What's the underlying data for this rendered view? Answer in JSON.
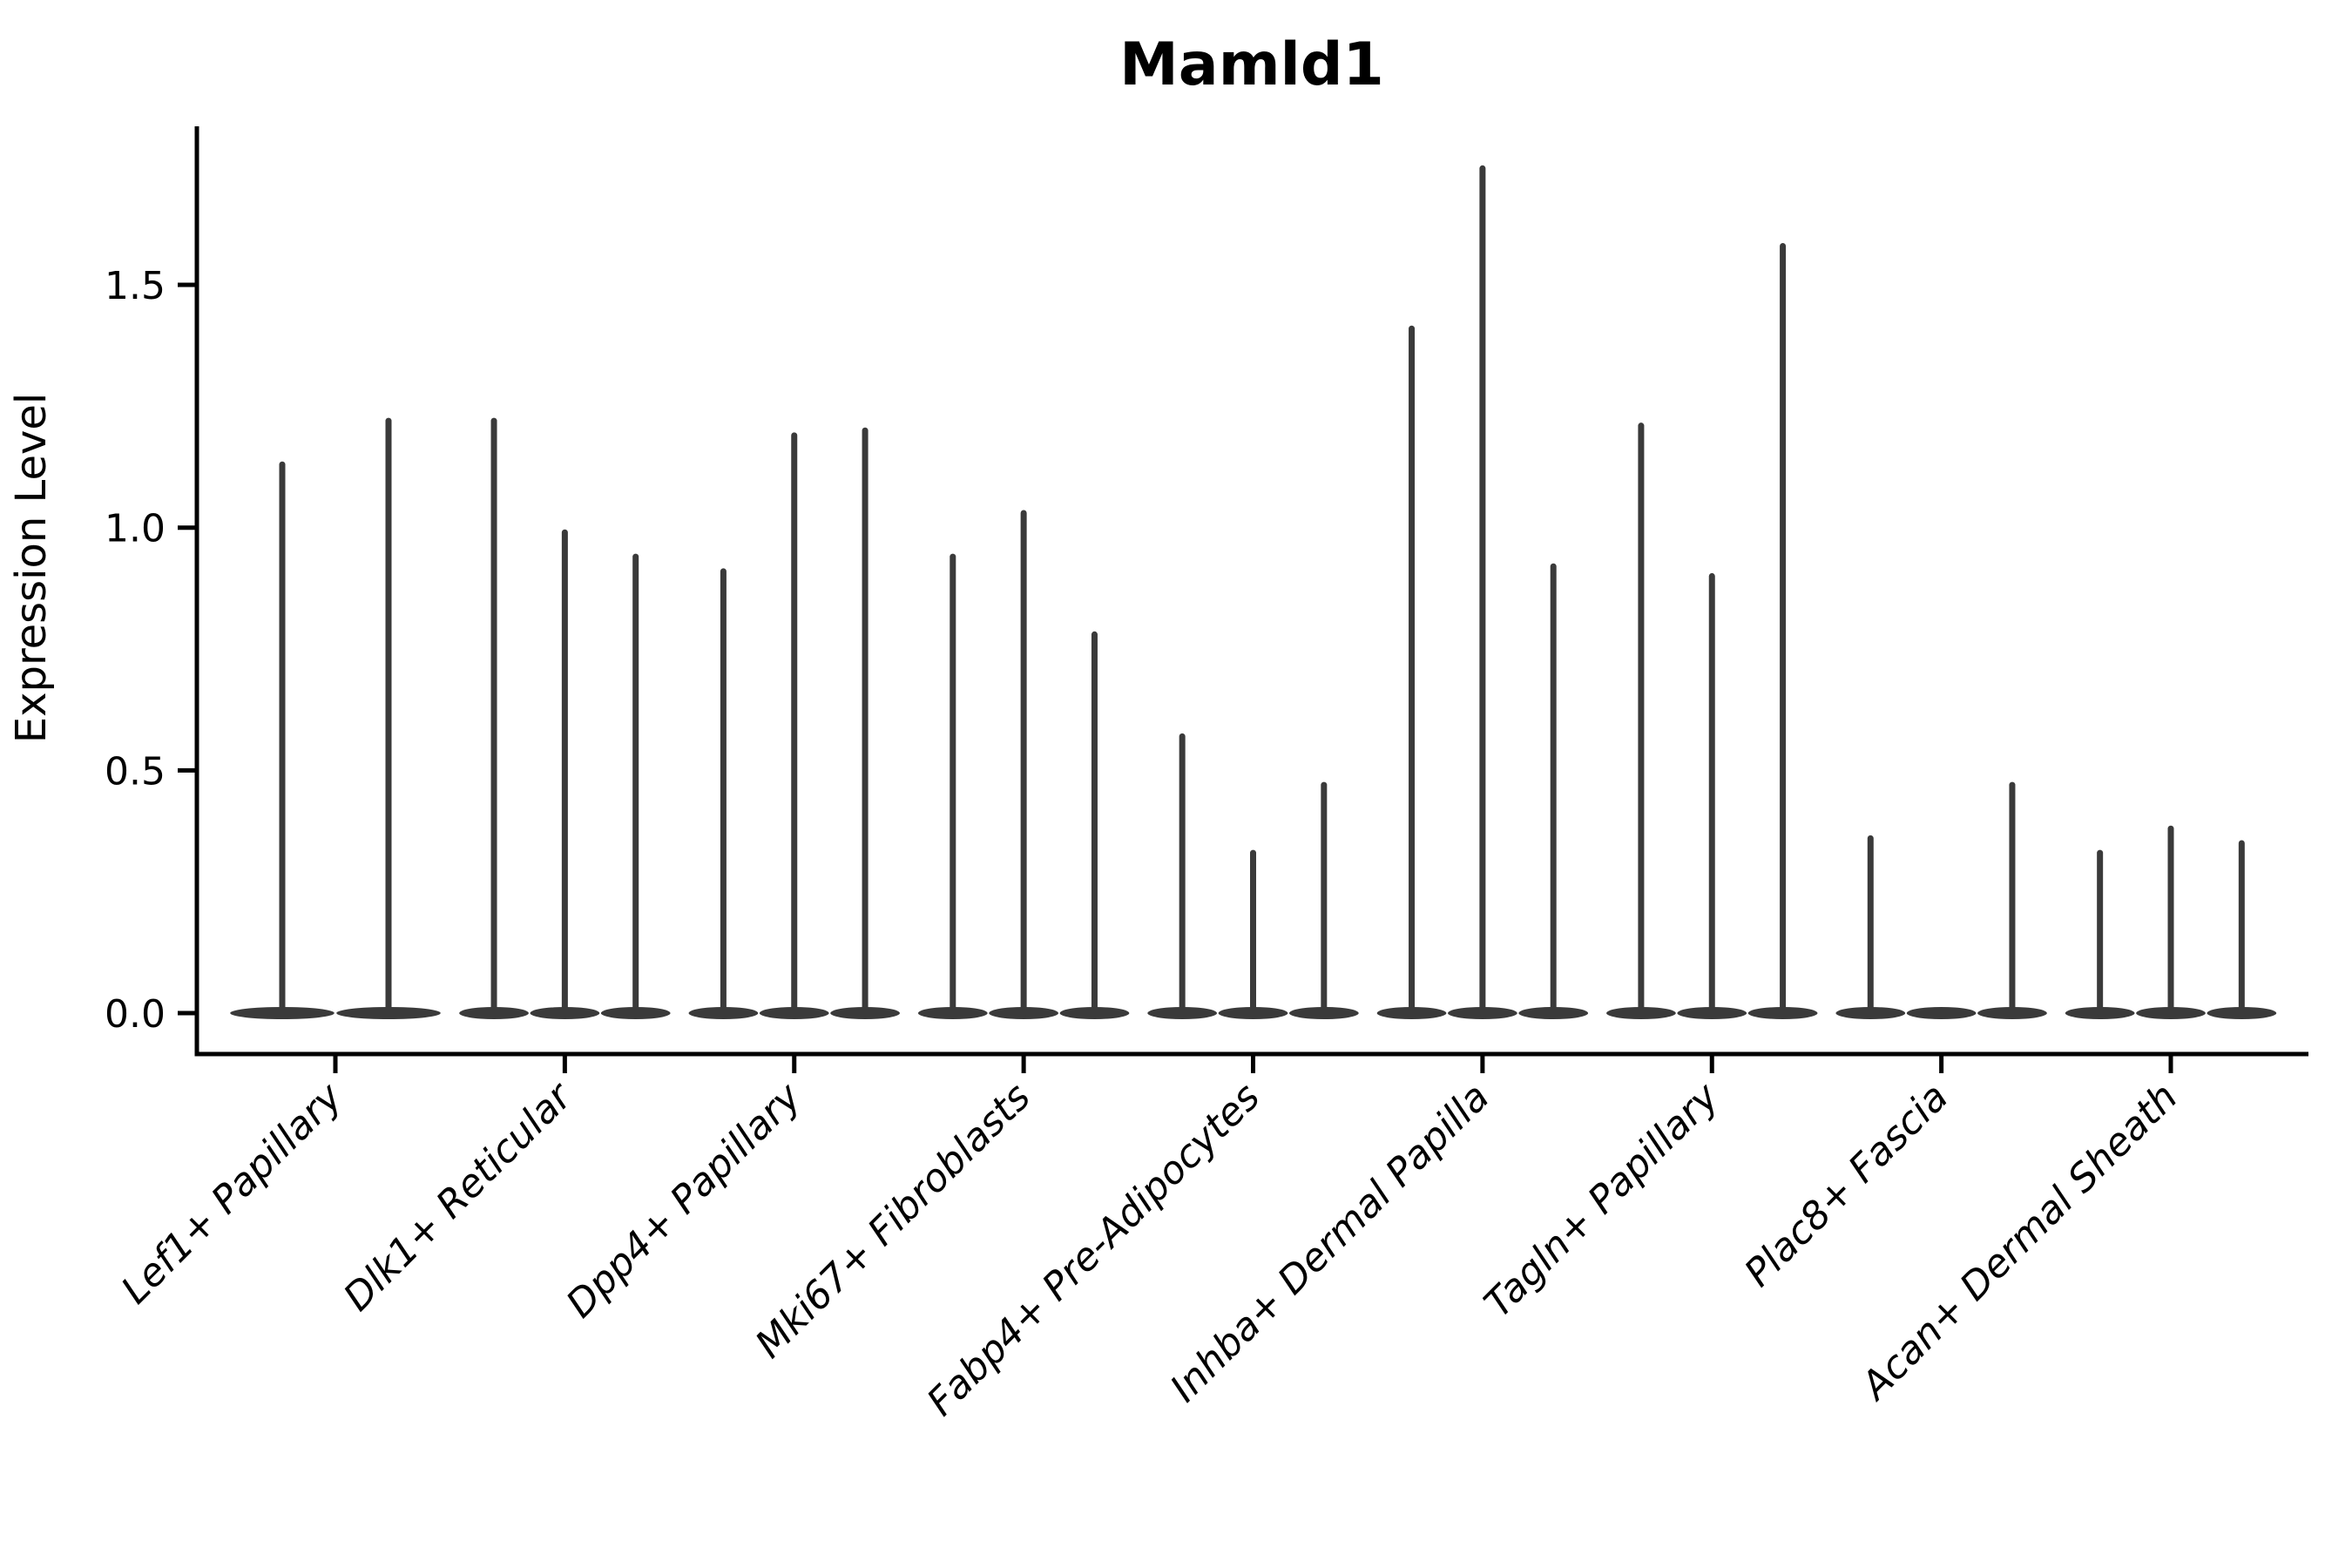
{
  "chart_data": {
    "type": "violin",
    "title": "Mamld1",
    "ylabel": "Expression Level",
    "yticks": [
      "0.0",
      "0.5",
      "1.0",
      "1.5"
    ],
    "ylim": [
      -0.09,
      1.83
    ],
    "grid": false,
    "legend": "none",
    "categories": [
      "Lef1+ Papillary",
      "Dlk1+ Reticular",
      "Dpp4+ Papillary",
      "Mki67+ Fibroblasts",
      "Fabp4+ Pre-Adipocytes",
      "Inhba+ Dermal Papilla",
      "Tagln+ Papillary",
      "Plac8+ Fascia",
      "Acan+ Dermal Sheath"
    ],
    "groups": [
      {
        "category": "Lef1+ Papillary",
        "n_slots": 2,
        "violins": [
          {
            "slot": 0,
            "max": 1.13
          },
          {
            "slot": 1,
            "max": 1.22
          }
        ]
      },
      {
        "category": "Dlk1+ Reticular",
        "n_slots": 3,
        "violins": [
          {
            "slot": 0,
            "max": 1.22
          },
          {
            "slot": 1,
            "max": 0.99
          },
          {
            "slot": 2,
            "max": 0.94
          }
        ]
      },
      {
        "category": "Dpp4+ Papillary",
        "n_slots": 3,
        "violins": [
          {
            "slot": 0,
            "max": 0.91
          },
          {
            "slot": 1,
            "max": 1.19
          },
          {
            "slot": 2,
            "max": 1.2
          }
        ]
      },
      {
        "category": "Mki67+ Fibroblasts",
        "n_slots": 3,
        "violins": [
          {
            "slot": 0,
            "max": 0.94
          },
          {
            "slot": 1,
            "max": 1.03
          },
          {
            "slot": 2,
            "max": 0.78
          }
        ]
      },
      {
        "category": "Fabp4+ Pre-Adipocytes",
        "n_slots": 3,
        "violins": [
          {
            "slot": 0,
            "max": 0.57
          },
          {
            "slot": 1,
            "max": 0.33
          },
          {
            "slot": 2,
            "max": 0.47
          }
        ]
      },
      {
        "category": "Inhba+ Dermal Papilla",
        "n_slots": 3,
        "violins": [
          {
            "slot": 0,
            "max": 1.41
          },
          {
            "slot": 1,
            "max": 1.74
          },
          {
            "slot": 2,
            "max": 0.92
          }
        ]
      },
      {
        "category": "Tagln+ Papillary",
        "n_slots": 3,
        "violins": [
          {
            "slot": 0,
            "max": 1.21
          },
          {
            "slot": 1,
            "max": 0.9
          },
          {
            "slot": 2,
            "max": 1.58
          }
        ]
      },
      {
        "category": "Plac8+ Fascia",
        "n_slots": 3,
        "violins": [
          {
            "slot": 0,
            "max": 0.36
          },
          {
            "slot": 1,
            "max": 0.0
          },
          {
            "slot": 2,
            "max": 0.47
          }
        ]
      },
      {
        "category": "Acan+ Dermal Sheath",
        "n_slots": 3,
        "violins": [
          {
            "slot": 0,
            "max": 0.33
          },
          {
            "slot": 1,
            "max": 0.38
          },
          {
            "slot": 2,
            "max": 0.35
          }
        ]
      }
    ],
    "colors": {
      "violin": "#3a3a3a",
      "axis": "#000000",
      "background": "#ffffff"
    }
  }
}
